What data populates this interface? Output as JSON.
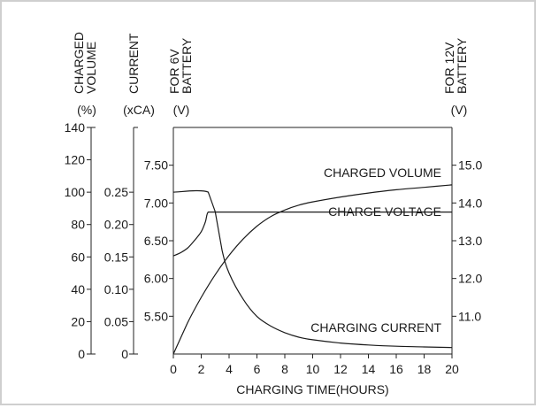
{
  "chart_data": {
    "type": "line",
    "xlabel": "CHARGING TIME(HOURS)",
    "x_ticks": [
      0,
      2,
      4,
      6,
      8,
      10,
      12,
      14,
      16,
      18,
      20
    ],
    "xlim": [
      0,
      20
    ],
    "axes": [
      {
        "id": "volume",
        "title_lines": [
          "CHARGED",
          "VOLUME"
        ],
        "unit": "(%)",
        "range": [
          0,
          140
        ],
        "ticks": [
          0,
          20,
          40,
          60,
          80,
          100,
          120,
          140
        ],
        "tick_labels": [
          "0",
          "20",
          "40",
          "60",
          "80",
          "100",
          "120",
          "140"
        ]
      },
      {
        "id": "current",
        "title_lines": [
          "CURRENT"
        ],
        "unit": "(xCA)",
        "range": [
          0,
          0.35
        ],
        "ticks": [
          0,
          0.05,
          0.1,
          0.15,
          0.2,
          0.25
        ],
        "tick_labels": [
          "0",
          "0.05",
          "0.10",
          "0.15",
          "0.20",
          "0.25"
        ]
      },
      {
        "id": "voltage6",
        "title_lines": [
          "FOR 6V",
          "BATTERY"
        ],
        "unit": "(V)",
        "range": [
          5.0,
          8.0
        ],
        "ticks": [
          5.5,
          6.0,
          6.5,
          7.0,
          7.5
        ],
        "tick_labels": [
          "5.50",
          "6.00",
          "6.50",
          "7.00",
          "7.50"
        ]
      },
      {
        "id": "voltage12",
        "title_lines": [
          "FOR 12V",
          "BATTERY"
        ],
        "unit": "(V)",
        "range": [
          10.0,
          16.0
        ],
        "ticks": [
          11,
          12,
          13,
          14,
          15
        ],
        "tick_labels": [
          "11.0",
          "12.0",
          "13.0",
          "14.0",
          "15.0"
        ]
      }
    ],
    "series": [
      {
        "name": "CHARGED VOLUME",
        "axis": "volume",
        "x": [
          0,
          1,
          2,
          3,
          4,
          5,
          6,
          7,
          8,
          9,
          10,
          12,
          14,
          16,
          18,
          20
        ],
        "y": [
          0,
          19,
          35,
          49,
          61,
          71,
          79,
          85,
          89,
          92,
          94,
          97,
          99.5,
          101.5,
          103,
          104.5
        ]
      },
      {
        "name": "CHARGE VOLTAGE",
        "axis": "voltage6",
        "x": [
          0,
          0.5,
          1,
          1.5,
          2,
          2.3,
          2.5,
          3,
          6,
          10,
          14,
          18,
          20
        ],
        "y": [
          6.3,
          6.34,
          6.4,
          6.5,
          6.62,
          6.75,
          6.88,
          6.88,
          6.88,
          6.88,
          6.88,
          6.88,
          6.88
        ]
      },
      {
        "name": "CHARGING CURRENT",
        "axis": "current",
        "x": [
          0,
          2.5,
          3,
          3.5,
          4,
          5,
          6,
          7,
          8,
          9,
          10,
          12,
          14,
          16,
          18,
          20
        ],
        "y": [
          0.25,
          0.25,
          0.22,
          0.16,
          0.125,
          0.085,
          0.058,
          0.043,
          0.033,
          0.026,
          0.022,
          0.017,
          0.014,
          0.012,
          0.011,
          0.01
        ]
      }
    ],
    "grid": false,
    "legend": "inline-labels"
  }
}
